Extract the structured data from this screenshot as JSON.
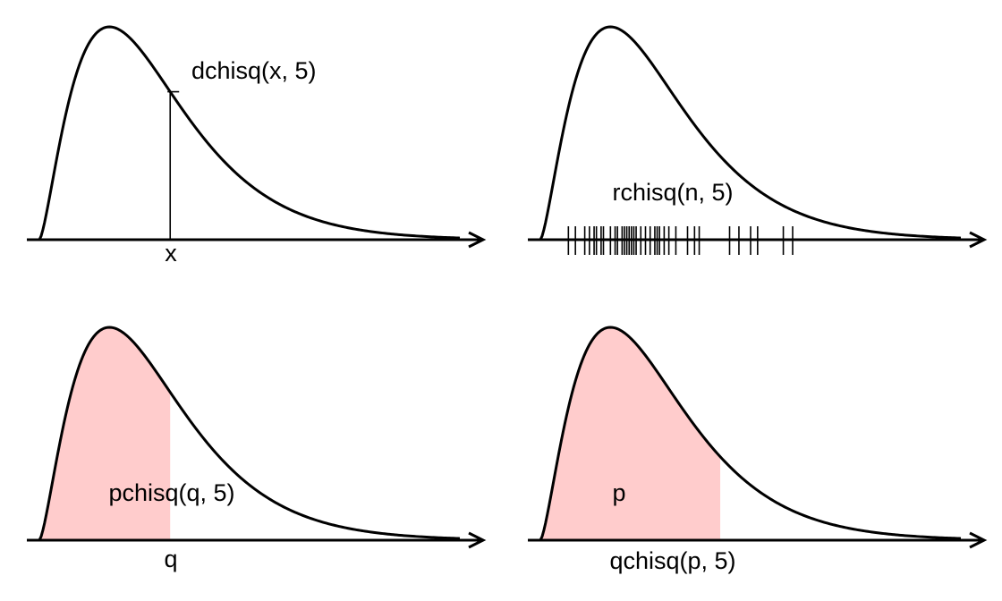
{
  "distribution": {
    "df": 5,
    "x_max": 18
  },
  "colors": {
    "line": "#000000",
    "fill": "#ffcccc"
  },
  "rug_values": [
    1.2,
    1.5,
    1.9,
    2.1,
    2.3,
    2.4,
    2.6,
    2.7,
    3.0,
    3.2,
    3.3,
    3.5,
    3.6,
    3.7,
    3.8,
    3.9,
    4.0,
    4.1,
    4.3,
    4.5,
    4.7,
    4.9,
    5.0,
    5.1,
    5.3,
    5.5,
    5.8,
    6.3,
    6.6,
    6.8,
    8.1,
    8.5,
    9.0,
    9.3,
    10.4,
    10.8
  ],
  "panels": {
    "density": {
      "label": "dchisq(x, 5)",
      "x_label": "x",
      "x_value": 5.6
    },
    "random": {
      "label": "rchisq(n, 5)"
    },
    "cdf": {
      "label": "pchisq(q, 5)",
      "x_label": "q",
      "q_value": 5.6
    },
    "quantile": {
      "label": "p",
      "x_label": "qchisq(p, 5)",
      "q_value": 7.7
    }
  }
}
